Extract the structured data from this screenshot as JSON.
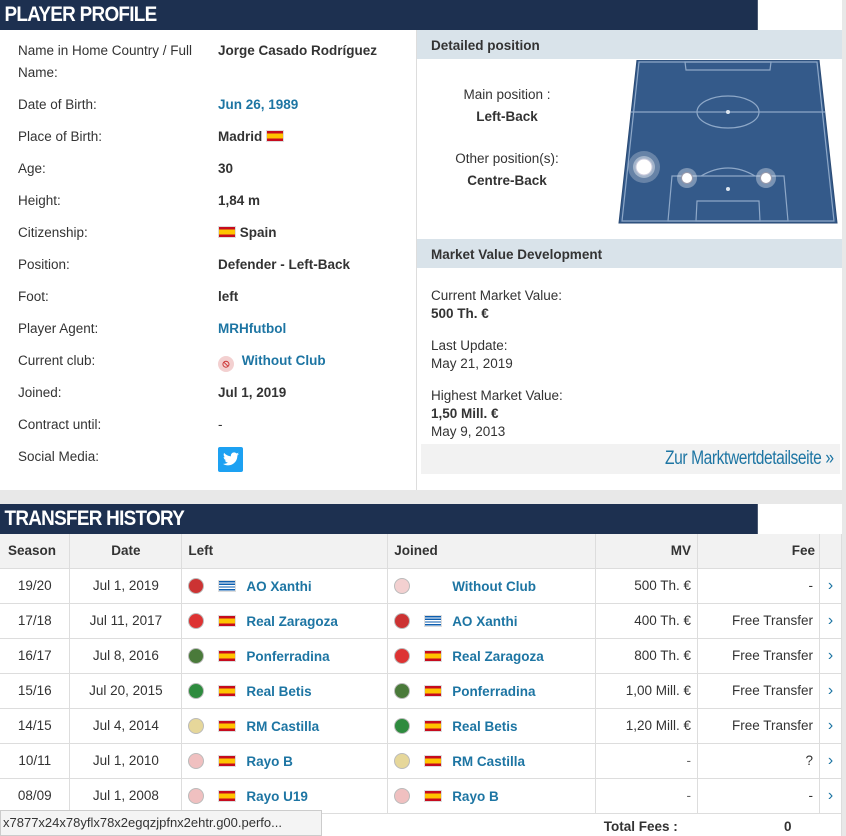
{
  "profile": {
    "header": "PLAYER PROFILE",
    "rows": [
      {
        "label": "Name in Home Country / Full Name:",
        "value": "Jorge Casado Rodríguez"
      },
      {
        "label": "Date of Birth:",
        "value": "Jun 26, 1989"
      },
      {
        "label": "Place of Birth:",
        "value": "Madrid"
      },
      {
        "label": "Age:",
        "value": "30"
      },
      {
        "label": "Height:",
        "value": "1,84 m"
      },
      {
        "label": "Citizenship:",
        "value": "Spain"
      },
      {
        "label": "Position:",
        "value": "Defender - Left-Back"
      },
      {
        "label": "Foot:",
        "value": "left"
      },
      {
        "label": "Player Agent:",
        "value": "MRHfutbol"
      },
      {
        "label": "Current club:",
        "value": "Without Club"
      },
      {
        "label": "Joined:",
        "value": "Jul 1, 2019"
      },
      {
        "label": "Contract until:",
        "value": "-"
      },
      {
        "label": "Social Media:",
        "value": ""
      }
    ]
  },
  "position": {
    "header": "Detailed position",
    "main_label": "Main position :",
    "main_value": "Left-Back",
    "other_label": "Other position(s):",
    "other_value": "Centre-Back"
  },
  "market": {
    "header": "Market Value Development",
    "current_label": "Current Market Value:",
    "current_value": "500 Th. €",
    "update_label": "Last Update:",
    "update_value": "May 21, 2019",
    "highest_label": "Highest Market Value:",
    "highest_value": "1,50 Mill. €",
    "highest_date": "May 9, 2013",
    "detail_link": "Zur Marktwertdetailseite »"
  },
  "transfers": {
    "header": "TRANSFER HISTORY",
    "columns": [
      "Season",
      "Date",
      "Left",
      "Joined",
      "MV",
      "Fee"
    ],
    "rows": [
      {
        "season": "19/20",
        "date": "Jul 1, 2019",
        "left": "AO Xanthi",
        "joined": "Without Club",
        "mv": "500 Th. €",
        "fee": "-"
      },
      {
        "season": "17/18",
        "date": "Jul 11, 2017",
        "left": "Real Zaragoza",
        "joined": "AO Xanthi",
        "mv": "400 Th. €",
        "fee": "Free Transfer"
      },
      {
        "season": "16/17",
        "date": "Jul 8, 2016",
        "left": "Ponferradina",
        "joined": "Real Zaragoza",
        "mv": "800 Th. €",
        "fee": "Free Transfer"
      },
      {
        "season": "15/16",
        "date": "Jul 20, 2015",
        "left": "Real Betis",
        "joined": "Ponferradina",
        "mv": "1,00 Mill. €",
        "fee": "Free Transfer"
      },
      {
        "season": "14/15",
        "date": "Jul 4, 2014",
        "left": "RM Castilla",
        "joined": "Real Betis",
        "mv": "1,20 Mill. €",
        "fee": "Free Transfer"
      },
      {
        "season": "10/11",
        "date": "Jul 1, 2010",
        "left": "Rayo B",
        "joined": "RM Castilla",
        "mv": "-",
        "fee": "?"
      },
      {
        "season": "08/09",
        "date": "Jul 1, 2008",
        "left": "Rayo U19",
        "joined": "Rayo B",
        "mv": "-",
        "fee": "-"
      }
    ],
    "total_label": "Total Fees :",
    "total_value": "0"
  },
  "status_url": "x7877x24x78yflx78x2egqzjpfnx2ehtr.g00.perfo..."
}
